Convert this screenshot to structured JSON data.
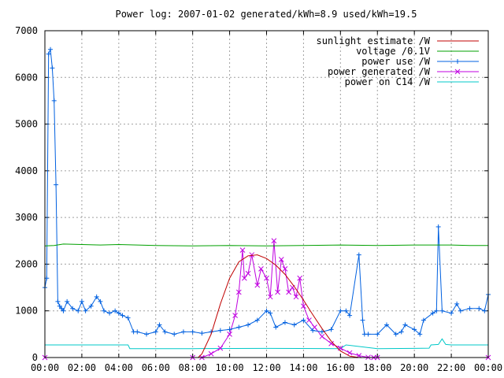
{
  "chart_data": {
    "type": "line",
    "title": "Power log: 2007-01-02 generated/kWh=8.9 used/kWh=19.5",
    "xlabel": "",
    "ylabel": "",
    "x_ticks": [
      "00:00",
      "02:00",
      "04:00",
      "06:00",
      "08:00",
      "10:00",
      "12:00",
      "14:00",
      "16:00",
      "18:00",
      "20:00",
      "22:00",
      "00:00"
    ],
    "xlim_hours": [
      0,
      24
    ],
    "y_ticks": [
      "0",
      "1000",
      "2000",
      "3000",
      "4000",
      "5000",
      "6000",
      "7000"
    ],
    "ylim": [
      0,
      7000
    ],
    "grid": true,
    "legend_position": "top-right",
    "series": [
      {
        "name": "sunlight estimate /W",
        "color": "#c00000",
        "marker": "none",
        "x": [
          0,
          8.3,
          8.5,
          9.0,
          9.5,
          10.0,
          10.5,
          11.0,
          11.5,
          12.0,
          12.5,
          13.0,
          13.5,
          14.0,
          14.5,
          15.0,
          15.5,
          16.0,
          16.5,
          17.0,
          17.5,
          18.0,
          24
        ],
        "values": [
          0,
          0,
          80,
          500,
          1150,
          1700,
          2050,
          2180,
          2200,
          2120,
          1980,
          1780,
          1520,
          1230,
          920,
          620,
          350,
          140,
          30,
          0,
          0,
          0,
          0
        ]
      },
      {
        "name": "voltage /0.1V",
        "color": "#00a000",
        "marker": "none",
        "x": [
          0,
          0.5,
          1.0,
          2.0,
          3.0,
          4.0,
          5.0,
          6.0,
          8.0,
          10.0,
          12.0,
          14.0,
          16.0,
          18.0,
          20.0,
          22.0,
          23.0,
          24.0
        ],
        "values": [
          2390,
          2400,
          2430,
          2420,
          2410,
          2420,
          2410,
          2400,
          2390,
          2400,
          2390,
          2400,
          2410,
          2400,
          2410,
          2410,
          2400,
          2400
        ]
      },
      {
        "name": "power use /W",
        "color": "#0060e0",
        "marker": "plus",
        "x": [
          0.0,
          0.1,
          0.2,
          0.3,
          0.4,
          0.5,
          0.6,
          0.7,
          0.8,
          0.9,
          1.0,
          1.2,
          1.5,
          1.8,
          2.0,
          2.2,
          2.5,
          2.8,
          3.0,
          3.2,
          3.5,
          3.8,
          4.0,
          4.2,
          4.5,
          4.8,
          5.0,
          5.5,
          6.0,
          6.2,
          6.5,
          7.0,
          7.5,
          8.0,
          8.5,
          9.0,
          9.5,
          10.0,
          10.5,
          11.0,
          11.5,
          12.0,
          12.2,
          12.5,
          13.0,
          13.5,
          14.0,
          14.5,
          15.0,
          15.5,
          16.0,
          16.3,
          16.5,
          17.0,
          17.2,
          17.3,
          17.5,
          18.0,
          18.5,
          19.0,
          19.3,
          19.5,
          20.0,
          20.3,
          20.5,
          21.0,
          21.2,
          21.3,
          21.5,
          22.0,
          22.3,
          22.5,
          23.0,
          23.5,
          23.8,
          24.0
        ],
        "values": [
          1500,
          1700,
          6500,
          6600,
          6200,
          5500,
          3700,
          1200,
          1100,
          1050,
          1000,
          1200,
          1050,
          1000,
          1200,
          1000,
          1100,
          1300,
          1200,
          1000,
          950,
          1000,
          950,
          900,
          850,
          550,
          550,
          500,
          550,
          700,
          550,
          500,
          550,
          550,
          520,
          550,
          580,
          600,
          650,
          700,
          800,
          1000,
          950,
          650,
          750,
          700,
          800,
          580,
          550,
          600,
          1000,
          1000,
          900,
          2200,
          800,
          500,
          500,
          500,
          700,
          500,
          550,
          700,
          600,
          500,
          800,
          950,
          1000,
          2800,
          1000,
          950,
          1150,
          1000,
          1050,
          1050,
          1000,
          1350
        ]
      },
      {
        "name": "power generated /W",
        "color": "#c000e0",
        "marker": "cross",
        "x": [
          0,
          8.0,
          8.5,
          9.0,
          9.5,
          10.0,
          10.3,
          10.5,
          10.7,
          10.8,
          11.0,
          11.2,
          11.5,
          11.7,
          12.0,
          12.2,
          12.4,
          12.6,
          12.8,
          13.0,
          13.2,
          13.4,
          13.6,
          13.8,
          14.0,
          14.3,
          14.6,
          15.0,
          15.5,
          16.0,
          16.5,
          17.0,
          17.5,
          17.8,
          18.0,
          24
        ],
        "values": [
          0,
          0,
          0,
          80,
          200,
          500,
          900,
          1400,
          2300,
          1700,
          1800,
          2200,
          1550,
          1900,
          1700,
          1300,
          2500,
          1400,
          2100,
          1900,
          1400,
          1500,
          1300,
          1700,
          1100,
          800,
          650,
          450,
          300,
          200,
          100,
          40,
          5,
          0,
          0,
          0
        ]
      },
      {
        "name": "power on C14 /W",
        "color": "#00c8c8",
        "marker": "none",
        "x": [
          0,
          4.5,
          4.6,
          8.0,
          12.0,
          16.0,
          16.3,
          18.0,
          20.0,
          20.8,
          20.9,
          21.3,
          21.5,
          21.7,
          22.0,
          24.0
        ],
        "values": [
          270,
          270,
          190,
          190,
          195,
          190,
          270,
          190,
          195,
          200,
          270,
          280,
          400,
          280,
          270,
          270
        ]
      }
    ]
  }
}
